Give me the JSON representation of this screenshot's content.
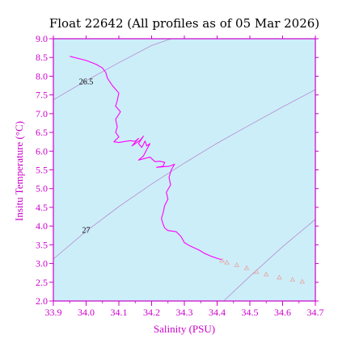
{
  "chart_data": {
    "type": "line",
    "title": "Float 22642  (All profiles as of 05 Mar 2026)",
    "xlabel": "Salinity (PSU)",
    "ylabel": "Insitu Temperature (°C)",
    "xlim": [
      33.9,
      34.7
    ],
    "ylim": [
      2.0,
      9.0
    ],
    "x_ticks": [
      "33.9",
      "34.0",
      "34.1",
      "34.2",
      "34.3",
      "34.4",
      "34.5",
      "34.6",
      "34.7"
    ],
    "y_ticks": [
      "2.0",
      "2.5",
      "3.0",
      "3.5",
      "4.0",
      "4.5",
      "5.0",
      "5.5",
      "6.0",
      "6.5",
      "7.0",
      "7.5",
      "8.0",
      "8.5",
      "9.0"
    ],
    "grid": false,
    "background": "#cceef8",
    "isopycnals": [
      {
        "label": "26.5",
        "points": [
          [
            33.9,
            7.37
          ],
          [
            34.0,
            7.88
          ],
          [
            34.1,
            8.36
          ],
          [
            34.2,
            8.82
          ],
          [
            34.26,
            9.0
          ]
        ]
      },
      {
        "label": "27",
        "points": [
          [
            33.9,
            3.12
          ],
          [
            34.0,
            3.86
          ],
          [
            34.1,
            4.52
          ],
          [
            34.2,
            5.12
          ],
          [
            34.3,
            5.68
          ],
          [
            34.4,
            6.21
          ],
          [
            34.5,
            6.7
          ],
          [
            34.6,
            7.18
          ],
          [
            34.7,
            7.64
          ]
        ]
      },
      {
        "label": "",
        "points": [
          [
            34.42,
            2.0
          ],
          [
            34.5,
            2.66
          ],
          [
            34.6,
            3.45
          ],
          [
            34.7,
            4.18
          ]
        ]
      }
    ],
    "series": [
      {
        "values": [
          [
            33.95,
            8.53
          ],
          [
            34.0,
            8.42
          ],
          [
            34.03,
            8.32
          ],
          [
            34.05,
            8.22
          ],
          [
            34.06,
            8.1
          ],
          [
            34.065,
            7.95
          ],
          [
            34.08,
            7.75
          ],
          [
            34.1,
            7.55
          ],
          [
            34.095,
            7.35
          ],
          [
            34.09,
            7.2
          ],
          [
            34.105,
            7.05
          ],
          [
            34.09,
            6.85
          ],
          [
            34.095,
            6.65
          ],
          [
            34.09,
            6.5
          ],
          [
            34.1,
            6.38
          ],
          [
            34.085,
            6.25
          ],
          [
            34.1,
            6.23
          ],
          [
            34.12,
            6.26
          ],
          [
            34.135,
            6.28
          ],
          [
            34.15,
            6.26
          ],
          [
            34.16,
            6.34
          ],
          [
            34.14,
            6.14
          ],
          [
            34.165,
            6.29
          ],
          [
            34.175,
            6.4
          ],
          [
            34.16,
            6.2
          ],
          [
            34.17,
            6.1
          ],
          [
            34.18,
            6.27
          ],
          [
            34.185,
            6.14
          ],
          [
            34.195,
            6.2
          ],
          [
            34.185,
            6.04
          ],
          [
            34.175,
            5.87
          ],
          [
            34.16,
            5.76
          ],
          [
            34.195,
            5.84
          ],
          [
            34.21,
            5.72
          ],
          [
            34.225,
            5.73
          ],
          [
            34.24,
            5.7
          ],
          [
            34.235,
            5.6
          ],
          [
            34.215,
            5.57
          ],
          [
            34.255,
            5.6
          ],
          [
            34.27,
            5.65
          ],
          [
            34.26,
            5.5
          ],
          [
            34.253,
            5.3
          ],
          [
            34.258,
            5.1
          ],
          [
            34.245,
            4.9
          ],
          [
            34.25,
            4.72
          ],
          [
            34.24,
            4.55
          ],
          [
            34.235,
            4.35
          ],
          [
            34.23,
            4.2
          ],
          [
            34.235,
            4.05
          ],
          [
            34.24,
            3.95
          ],
          [
            34.25,
            3.88
          ],
          [
            34.275,
            3.85
          ],
          [
            34.29,
            3.72
          ],
          [
            34.3,
            3.56
          ],
          [
            34.315,
            3.48
          ],
          [
            34.33,
            3.42
          ],
          [
            34.345,
            3.36
          ],
          [
            34.36,
            3.28
          ],
          [
            34.38,
            3.2
          ],
          [
            34.4,
            3.14
          ],
          [
            34.415,
            3.1
          ]
        ],
        "color": "#ff00ff"
      },
      {
        "values": [
          [
            34.415,
            3.08
          ],
          [
            34.43,
            3.03
          ],
          [
            34.46,
            2.96
          ],
          [
            34.49,
            2.88
          ],
          [
            34.52,
            2.78
          ],
          [
            34.55,
            2.71
          ],
          [
            34.59,
            2.63
          ],
          [
            34.63,
            2.57
          ],
          [
            34.66,
            2.52
          ]
        ],
        "color": "#e8a4a4",
        "marker": "triangle"
      }
    ],
    "colors": {
      "axes": "#cc00cc",
      "profile": "#ff00ff",
      "isopycnal": "#b58cd0",
      "deep_markers": "#e8a4a4"
    }
  }
}
